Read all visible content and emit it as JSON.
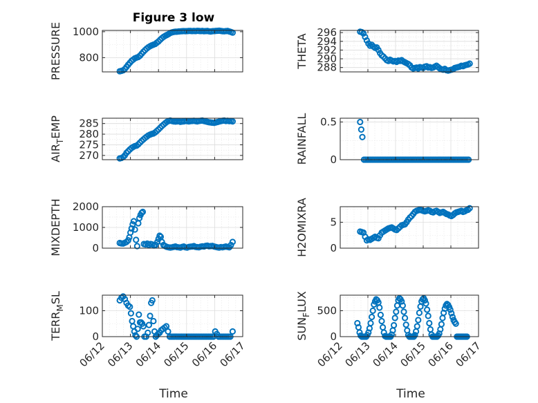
{
  "figure_title": "Figure 3 low",
  "marker_color": "#0072BD",
  "x_tick_labels": [
    "06/12",
    "06/13",
    "06/14",
    "06/15",
    "06/16",
    "06/17"
  ],
  "x_axis_label": "Time",
  "chart_data": [
    {
      "type": "scatter",
      "name": "PRESSURE",
      "ylabel": "PRESSURE",
      "xlim": [
        0,
        5
      ],
      "ylim": [
        690,
        1010
      ],
      "yticks": [
        800,
        1000
      ],
      "grid": true,
      "x": [
        0.62,
        0.68,
        0.74,
        0.8,
        0.86,
        0.92,
        0.98,
        1.04,
        1.1,
        1.16,
        1.22,
        1.28,
        1.34,
        1.4,
        1.46,
        1.52,
        1.58,
        1.64,
        1.7,
        1.76,
        1.82,
        1.88,
        1.94,
        2.0,
        2.06,
        2.12,
        2.18,
        2.24,
        2.3,
        2.36,
        2.42,
        2.48,
        2.54,
        2.6,
        2.66,
        2.72,
        2.78,
        2.84,
        2.9,
        2.96,
        3.02,
        3.08,
        3.14,
        3.2,
        3.26,
        3.32,
        3.38,
        3.44,
        3.5,
        3.56,
        3.62,
        3.68,
        3.74,
        3.8,
        3.86,
        3.92,
        3.98,
        4.04,
        4.1,
        4.16,
        4.22,
        4.28,
        4.34,
        4.4,
        4.46,
        4.52,
        4.58,
        4.64
      ],
      "y": [
        695,
        698,
        702,
        712,
        728,
        745,
        760,
        775,
        785,
        795,
        800,
        805,
        815,
        830,
        845,
        858,
        870,
        880,
        888,
        895,
        900,
        905,
        915,
        925,
        938,
        950,
        960,
        968,
        975,
        982,
        990,
        995,
        998,
        1000,
        1000,
        1002,
        1003,
        1004,
        1005,
        1004,
        1005,
        1006,
        1006,
        1005,
        1006,
        1005,
        1007,
        1006,
        1005,
        1006,
        1004,
        1005,
        1006,
        1003,
        1002,
        1004,
        1005,
        1006,
        1007,
        1008,
        1006,
        1004,
        1003,
        1005,
        1006,
        1002,
        998,
        993
      ]
    },
    {
      "type": "scatter",
      "name": "THETA",
      "ylabel": "THETA",
      "xlim": [
        0,
        5
      ],
      "ylim": [
        287,
        296.5
      ],
      "yticks": [
        288,
        290,
        292,
        294,
        296
      ],
      "grid": true,
      "x": [
        0.72,
        0.78,
        0.84,
        0.9,
        0.96,
        1.02,
        1.08,
        1.14,
        1.2,
        1.26,
        1.32,
        1.38,
        1.44,
        1.5,
        1.56,
        1.62,
        1.68,
        1.74,
        1.8,
        1.86,
        1.92,
        1.98,
        2.04,
        2.1,
        2.16,
        2.22,
        2.28,
        2.34,
        2.4,
        2.46,
        2.52,
        2.58,
        2.64,
        2.7,
        2.76,
        2.82,
        2.88,
        2.94,
        3.0,
        3.06,
        3.12,
        3.18,
        3.24,
        3.3,
        3.36,
        3.42,
        3.48,
        3.54,
        3.6,
        3.66,
        3.72,
        3.78,
        3.84,
        3.9,
        3.96,
        4.02,
        4.08,
        4.14,
        4.2,
        4.26,
        4.32,
        4.38,
        4.44,
        4.5,
        4.56,
        4.62,
        4.68
      ],
      "y": [
        296.2,
        296.1,
        295.8,
        295.0,
        294.2,
        293.5,
        293.0,
        293.2,
        292.8,
        292.5,
        292.6,
        292.0,
        291.3,
        290.8,
        290.5,
        290.1,
        289.7,
        289.5,
        289.8,
        289.6,
        289.4,
        289.5,
        289.3,
        289.6,
        289.5,
        289.7,
        289.4,
        289.2,
        289.0,
        288.8,
        288.5,
        288.0,
        287.8,
        287.9,
        288.0,
        287.8,
        288.1,
        288.0,
        287.9,
        288.2,
        288.3,
        288.0,
        288.1,
        287.9,
        288.0,
        288.2,
        288.4,
        288.1,
        287.8,
        287.6,
        287.5,
        287.7,
        287.4,
        287.3,
        287.4,
        287.5,
        287.6,
        287.9,
        288.0,
        288.1,
        288.2,
        288.4,
        288.3,
        288.5,
        288.6,
        288.7,
        288.9
      ]
    },
    {
      "type": "scatter",
      "name": "AIR_TEMP",
      "ylabel": "AIR_TEMP",
      "xlim": [
        0,
        5
      ],
      "ylim": [
        268,
        287.5
      ],
      "yticks": [
        270,
        275,
        280,
        285
      ],
      "grid": true,
      "x": [
        0.62,
        0.68,
        0.74,
        0.8,
        0.86,
        0.92,
        0.98,
        1.04,
        1.1,
        1.16,
        1.22,
        1.28,
        1.34,
        1.4,
        1.46,
        1.52,
        1.58,
        1.64,
        1.7,
        1.76,
        1.82,
        1.88,
        1.94,
        2.0,
        2.06,
        2.12,
        2.18,
        2.24,
        2.3,
        2.36,
        2.42,
        2.48,
        2.54,
        2.6,
        2.66,
        2.72,
        2.78,
        2.84,
        2.9,
        2.96,
        3.02,
        3.08,
        3.14,
        3.2,
        3.26,
        3.32,
        3.38,
        3.44,
        3.5,
        3.56,
        3.62,
        3.68,
        3.74,
        3.8,
        3.86,
        3.92,
        3.98,
        4.04,
        4.1,
        4.16,
        4.22,
        4.28,
        4.34,
        4.4,
        4.46,
        4.52,
        4.58,
        4.64
      ],
      "y": [
        268.6,
        268.8,
        269.2,
        270.0,
        271.2,
        272.0,
        272.8,
        273.5,
        274.0,
        274.4,
        274.6,
        275.2,
        276.0,
        276.8,
        277.5,
        278.2,
        278.8,
        279.4,
        279.8,
        280.1,
        280.3,
        280.8,
        281.5,
        282.2,
        283.0,
        283.8,
        284.5,
        285.2,
        285.8,
        286.2,
        286.4,
        286.2,
        286.0,
        285.9,
        286.0,
        286.1,
        285.8,
        285.9,
        286.0,
        286.2,
        286.1,
        286.0,
        286.1,
        286.2,
        286.3,
        286.1,
        286.0,
        286.2,
        286.3,
        286.4,
        286.2,
        286.0,
        285.8,
        285.6,
        285.5,
        285.4,
        285.3,
        285.5,
        285.7,
        285.9,
        286.1,
        286.3,
        286.4,
        286.2,
        286.3,
        286.1,
        286.2,
        286.0
      ]
    },
    {
      "type": "scatter",
      "name": "RAINFALL",
      "ylabel": "RAINFALL",
      "xlim": [
        0,
        5
      ],
      "ylim": [
        0,
        0.55
      ],
      "yticks": [
        0,
        0.5
      ],
      "grid": true,
      "x": [
        0.72,
        0.76,
        0.8,
        0.86,
        0.92,
        0.98,
        1.04,
        1.1,
        1.16,
        1.22,
        1.28,
        1.34,
        1.4,
        1.46,
        1.52,
        1.58,
        1.64,
        1.7,
        1.76,
        1.82,
        1.88,
        1.94,
        2.0,
        2.06,
        2.12,
        2.18,
        2.24,
        2.3,
        2.36,
        2.42,
        2.48,
        2.54,
        2.6,
        2.66,
        2.72,
        2.78,
        2.84,
        2.9,
        2.96,
        3.02,
        3.08,
        3.14,
        3.2,
        3.26,
        3.32,
        3.38,
        3.44,
        3.5,
        3.56,
        3.62,
        3.68,
        3.74,
        3.8,
        3.86,
        3.92,
        3.98,
        4.04,
        4.1,
        4.16,
        4.22,
        4.28,
        4.34,
        4.4,
        4.46,
        4.52,
        4.58,
        4.64
      ],
      "y": [
        0.5,
        0.4,
        0.3,
        0,
        0,
        0,
        0,
        0,
        0,
        0,
        0,
        0,
        0,
        0,
        0,
        0,
        0,
        0,
        0,
        0,
        0,
        0,
        0,
        0,
        0,
        0,
        0,
        0,
        0,
        0,
        0,
        0,
        0,
        0,
        0,
        0,
        0,
        0,
        0,
        0,
        0,
        0,
        0,
        0,
        0,
        0,
        0,
        0,
        0,
        0,
        0,
        0,
        0,
        0,
        0,
        0,
        0,
        0,
        0,
        0,
        0,
        0,
        0,
        0,
        0,
        0,
        0
      ]
    },
    {
      "type": "scatter",
      "name": "MIXDEPTH",
      "ylabel": "MIXDEPTH",
      "xlim": [
        0,
        5
      ],
      "ylim": [
        0,
        2000
      ],
      "yticks": [
        0,
        1000,
        2000
      ],
      "grid": true,
      "x": [
        0.62,
        0.68,
        0.74,
        0.8,
        0.86,
        0.92,
        0.96,
        1.0,
        1.04,
        1.08,
        1.12,
        1.16,
        1.2,
        1.24,
        1.28,
        1.32,
        1.36,
        1.4,
        1.44,
        1.48,
        1.54,
        1.6,
        1.66,
        1.72,
        1.78,
        1.84,
        1.9,
        1.96,
        2.0,
        2.04,
        2.08,
        2.12,
        2.18,
        2.24,
        2.3,
        2.36,
        2.42,
        2.48,
        2.54,
        2.6,
        2.66,
        2.72,
        2.78,
        2.84,
        2.9,
        2.96,
        3.02,
        3.08,
        3.14,
        3.2,
        3.26,
        3.32,
        3.38,
        3.44,
        3.5,
        3.56,
        3.62,
        3.68,
        3.74,
        3.8,
        3.86,
        3.92,
        3.98,
        4.04,
        4.1,
        4.16,
        4.22,
        4.28,
        4.34,
        4.4,
        4.46,
        4.52,
        4.58,
        4.64
      ],
      "y": [
        250,
        230,
        220,
        260,
        300,
        380,
        520,
        750,
        950,
        1150,
        1300,
        900,
        400,
        100,
        1200,
        1450,
        1600,
        1700,
        1750,
        200,
        180,
        220,
        150,
        200,
        180,
        130,
        160,
        300,
        450,
        600,
        550,
        300,
        150,
        100,
        60,
        40,
        30,
        40,
        60,
        80,
        50,
        40,
        30,
        60,
        80,
        40,
        30,
        60,
        70,
        80,
        100,
        60,
        50,
        40,
        70,
        90,
        80,
        110,
        120,
        90,
        100,
        110,
        80,
        60,
        40,
        30,
        50,
        40,
        60,
        80,
        60,
        40,
        150,
        300
      ]
    },
    {
      "type": "scatter",
      "name": "H2OMIXRA",
      "ylabel": "H2OMIXRA",
      "xlim": [
        0,
        5
      ],
      "ylim": [
        0,
        8
      ],
      "yticks": [
        0,
        5
      ],
      "grid": true,
      "x": [
        0.72,
        0.78,
        0.84,
        0.9,
        0.96,
        1.02,
        1.08,
        1.14,
        1.2,
        1.26,
        1.32,
        1.38,
        1.44,
        1.5,
        1.56,
        1.62,
        1.68,
        1.74,
        1.8,
        1.86,
        1.92,
        1.98,
        2.04,
        2.1,
        2.16,
        2.22,
        2.28,
        2.34,
        2.4,
        2.46,
        2.52,
        2.58,
        2.64,
        2.7,
        2.76,
        2.82,
        2.88,
        2.94,
        3.0,
        3.06,
        3.12,
        3.18,
        3.24,
        3.3,
        3.36,
        3.42,
        3.48,
        3.54,
        3.6,
        3.66,
        3.72,
        3.78,
        3.84,
        3.9,
        3.96,
        4.02,
        4.08,
        4.14,
        4.2,
        4.26,
        4.32,
        4.38,
        4.44,
        4.5,
        4.56,
        4.62,
        4.68
      ],
      "y": [
        3.2,
        3.1,
        3.0,
        2.2,
        1.5,
        1.7,
        1.6,
        1.8,
        2.0,
        2.2,
        2.0,
        1.9,
        2.5,
        3.0,
        3.2,
        3.4,
        3.6,
        3.8,
        3.9,
        4.0,
        3.8,
        3.6,
        3.5,
        3.8,
        4.1,
        4.4,
        4.5,
        4.6,
        5.0,
        5.5,
        5.9,
        6.2,
        6.6,
        7.0,
        7.2,
        7.3,
        7.4,
        7.3,
        7.2,
        7.1,
        7.2,
        7.3,
        7.2,
        7.0,
        6.9,
        7.1,
        7.2,
        7.0,
        6.8,
        6.9,
        7.0,
        6.8,
        6.6,
        6.5,
        6.3,
        6.2,
        6.4,
        6.7,
        6.9,
        7.0,
        7.1,
        7.2,
        7.0,
        7.1,
        7.3,
        7.4,
        7.7
      ]
    },
    {
      "type": "scatter",
      "name": "TERR_MSL",
      "ylabel": "TERR_MSL",
      "xlim": [
        0,
        5
      ],
      "ylim": [
        0,
        160
      ],
      "yticks": [
        0,
        100
      ],
      "grid": true,
      "x": [
        0.62,
        0.68,
        0.74,
        0.8,
        0.86,
        0.92,
        0.98,
        1.02,
        1.06,
        1.1,
        1.14,
        1.18,
        1.22,
        1.26,
        1.3,
        1.34,
        1.38,
        1.42,
        1.46,
        1.5,
        1.56,
        1.62,
        1.66,
        1.7,
        1.74,
        1.78,
        1.82,
        1.86,
        1.9,
        1.94,
        1.98,
        2.04,
        2.1,
        2.16,
        2.22,
        2.28,
        2.34,
        2.4,
        2.46,
        2.52,
        2.58,
        2.64,
        2.7,
        2.76,
        2.82,
        2.88,
        2.94,
        3.0,
        3.06,
        3.12,
        3.18,
        3.24,
        3.3,
        3.36,
        3.42,
        3.48,
        3.54,
        3.6,
        3.66,
        3.72,
        3.78,
        3.84,
        3.9,
        3.96,
        4.02,
        4.08,
        4.14,
        4.2,
        4.26,
        4.32,
        4.38,
        4.44,
        4.5,
        4.56,
        4.64
      ],
      "y": [
        140,
        150,
        155,
        145,
        130,
        120,
        115,
        90,
        60,
        40,
        20,
        5,
        0,
        30,
        85,
        55,
        55,
        50,
        40,
        0,
        0,
        15,
        45,
        80,
        130,
        140,
        60,
        20,
        0,
        5,
        10,
        15,
        25,
        30,
        35,
        40,
        20,
        0,
        0,
        0,
        0,
        0,
        0,
        0,
        0,
        0,
        0,
        0,
        0,
        0,
        0,
        0,
        0,
        0,
        0,
        0,
        0,
        0,
        0,
        0,
        0,
        0,
        0,
        0,
        20,
        10,
        0,
        0,
        0,
        0,
        0,
        0,
        0,
        0,
        20
      ]
    },
    {
      "type": "scatter",
      "name": "SUN_FLUX",
      "ylabel": "SUN_FLUX",
      "xlim": [
        0,
        5
      ],
      "ylim": [
        0,
        800
      ],
      "yticks": [
        0,
        500
      ],
      "grid": true,
      "x": [
        0.62,
        0.66,
        0.7,
        0.74,
        0.78,
        0.82,
        0.86,
        0.9,
        0.94,
        0.98,
        1.02,
        1.06,
        1.1,
        1.14,
        1.18,
        1.22,
        1.26,
        1.3,
        1.34,
        1.38,
        1.42,
        1.46,
        1.5,
        1.54,
        1.58,
        1.62,
        1.66,
        1.7,
        1.74,
        1.78,
        1.82,
        1.86,
        1.9,
        1.94,
        1.98,
        2.02,
        2.06,
        2.1,
        2.14,
        2.18,
        2.22,
        2.26,
        2.3,
        2.34,
        2.38,
        2.42,
        2.46,
        2.5,
        2.54,
        2.58,
        2.62,
        2.66,
        2.7,
        2.74,
        2.78,
        2.82,
        2.86,
        2.9,
        2.94,
        2.98,
        3.02,
        3.06,
        3.1,
        3.14,
        3.18,
        3.22,
        3.26,
        3.3,
        3.34,
        3.38,
        3.42,
        3.46,
        3.5,
        3.54,
        3.58,
        3.62,
        3.66,
        3.7,
        3.74,
        3.78,
        3.82,
        3.86,
        3.9,
        3.94,
        3.98,
        4.02,
        4.06,
        4.1,
        4.14,
        4.18,
        4.22,
        4.26,
        4.3,
        4.34,
        4.38,
        4.42,
        4.46,
        4.5,
        4.54,
        4.58
      ],
      "y": [
        260,
        180,
        80,
        20,
        0,
        0,
        0,
        0,
        0,
        30,
        80,
        160,
        260,
        380,
        500,
        620,
        680,
        720,
        700,
        660,
        560,
        420,
        300,
        180,
        80,
        10,
        0,
        0,
        0,
        0,
        0,
        40,
        120,
        220,
        360,
        480,
        600,
        700,
        740,
        720,
        680,
        600,
        480,
        360,
        230,
        120,
        30,
        0,
        0,
        0,
        0,
        0,
        30,
        100,
        200,
        320,
        460,
        580,
        680,
        720,
        740,
        700,
        640,
        520,
        400,
        260,
        140,
        40,
        0,
        0,
        0,
        0,
        0,
        20,
        60,
        140,
        240,
        360,
        460,
        540,
        600,
        630,
        610,
        570,
        520,
        450,
        380,
        320,
        280,
        250,
        0,
        0,
        0,
        0,
        0,
        0,
        0,
        0,
        0,
        0
      ]
    }
  ]
}
